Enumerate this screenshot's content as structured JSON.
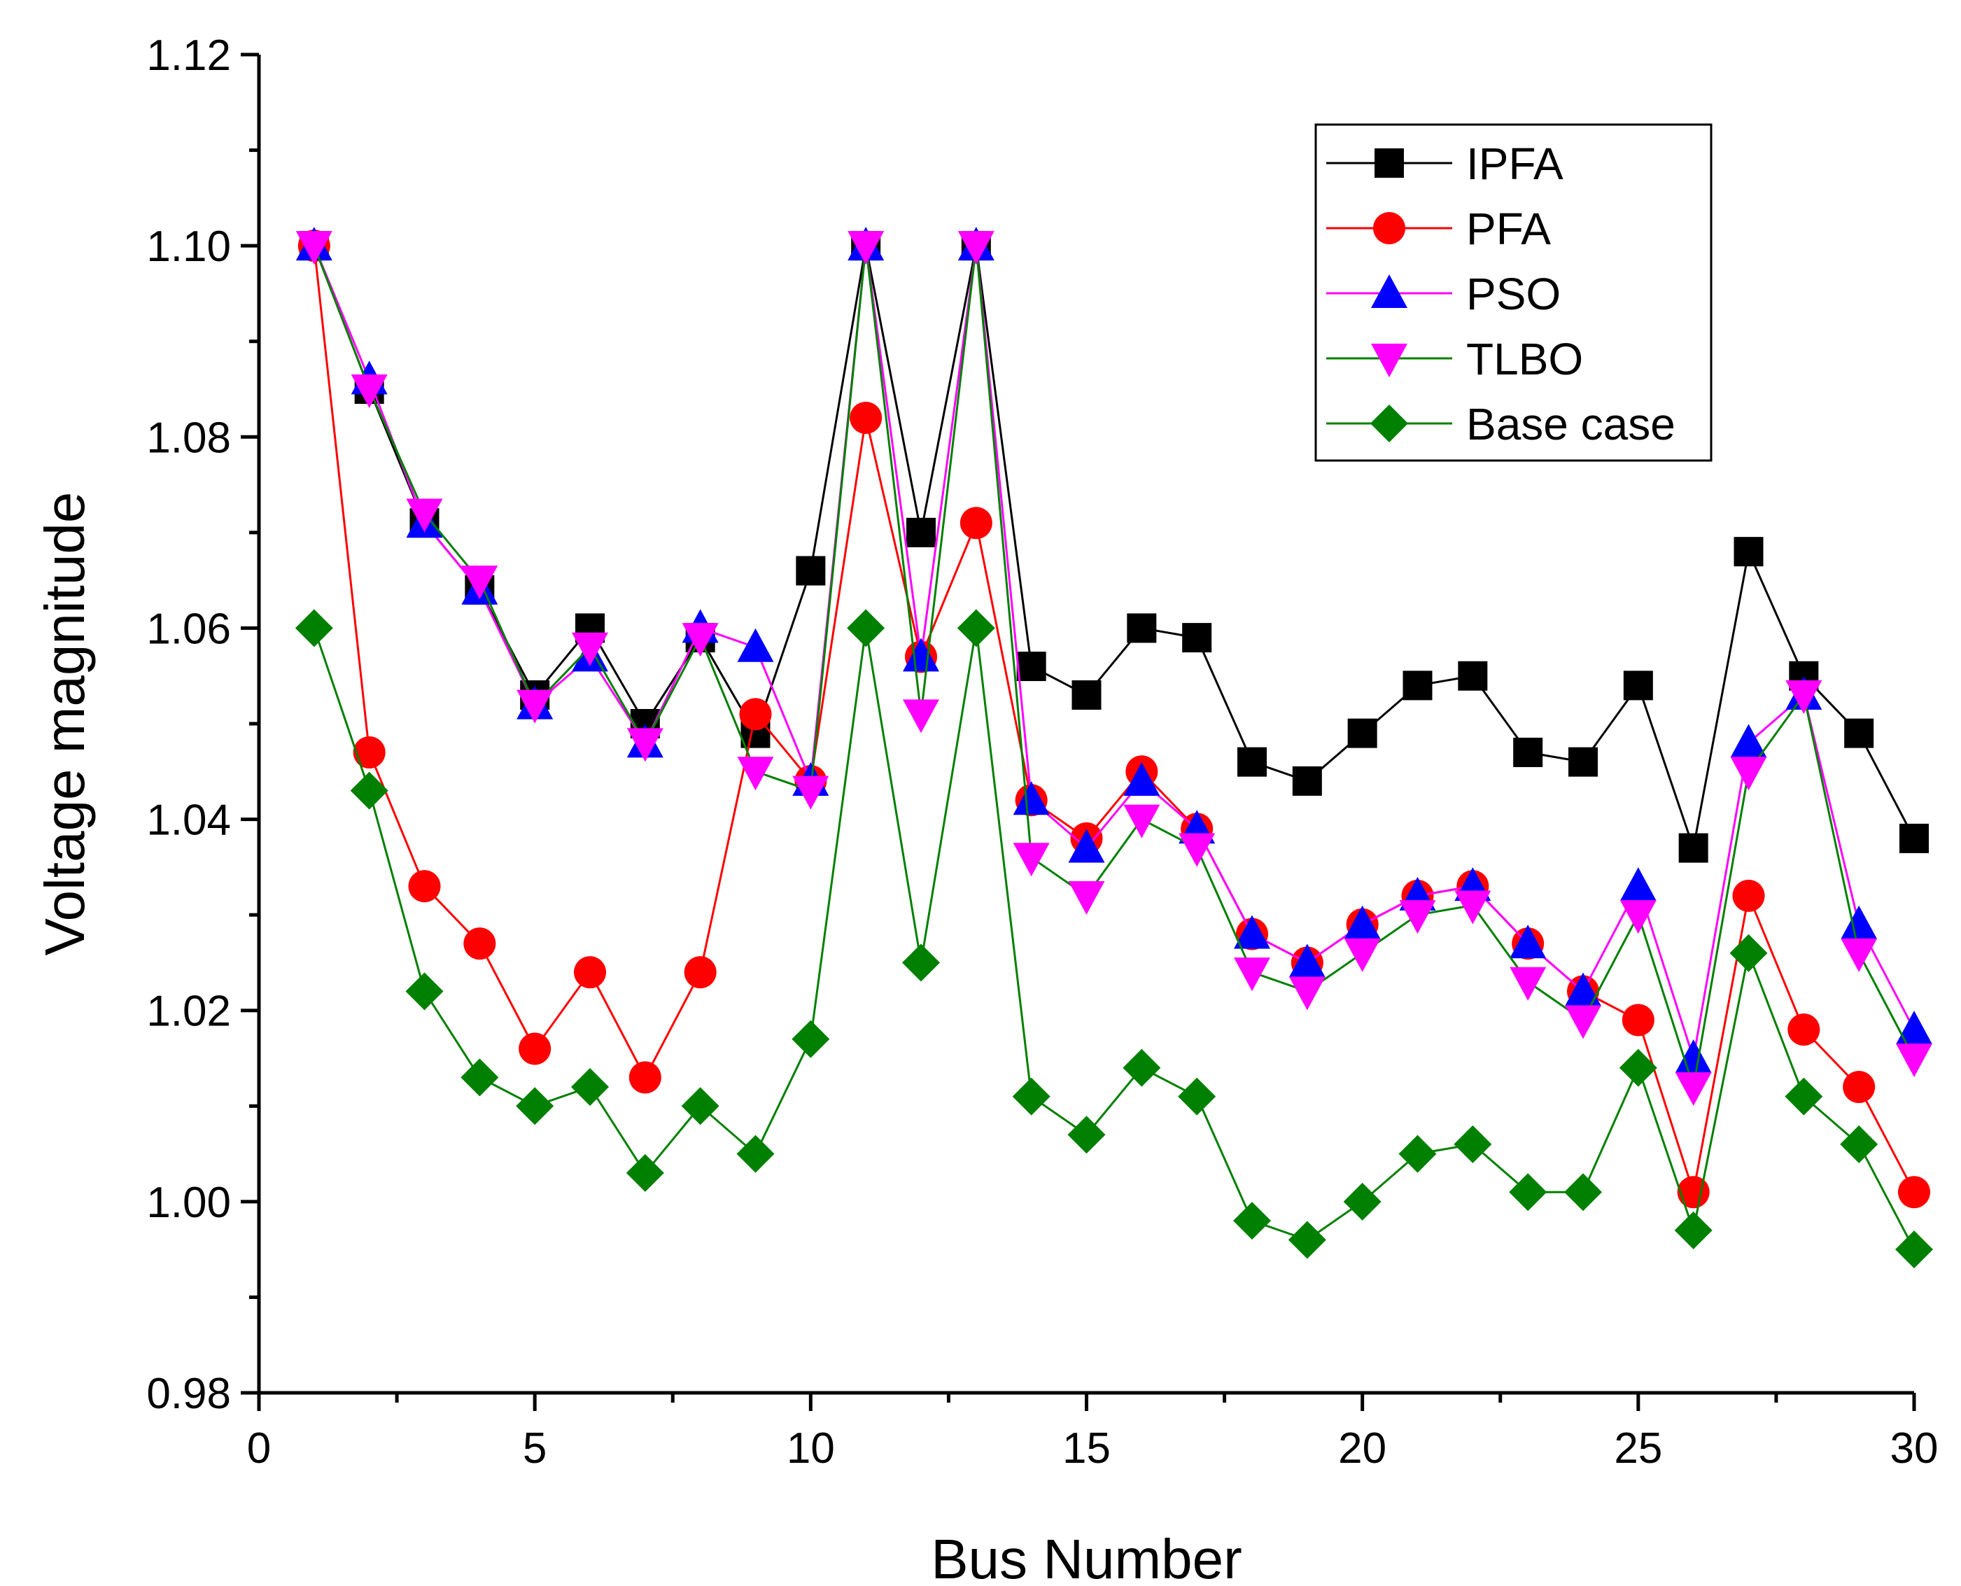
{
  "chart_data": {
    "type": "line",
    "title": "",
    "xlabel": "Bus Number",
    "ylabel": "Voltage magnitude",
    "xlim": [
      0,
      30
    ],
    "ylim": [
      0.98,
      1.12
    ],
    "x_major_ticks": [
      0,
      5,
      10,
      15,
      20,
      25,
      30
    ],
    "x_tick_labels": [
      "0",
      "5",
      "10",
      "15",
      "20",
      "25",
      "30"
    ],
    "y_major_ticks": [
      0.98,
      1.0,
      1.02,
      1.04,
      1.06,
      1.08,
      1.1,
      1.12
    ],
    "y_tick_labels": [
      "0.98",
      "1.00",
      "1.02",
      "1.04",
      "1.06",
      "1.08",
      "1.10",
      "1.12"
    ],
    "grid": false,
    "legend_position": "top-right",
    "x": [
      1,
      2,
      3,
      4,
      5,
      6,
      7,
      8,
      9,
      10,
      11,
      12,
      13,
      14,
      15,
      16,
      17,
      18,
      19,
      20,
      21,
      22,
      23,
      24,
      25,
      26,
      27,
      28,
      29,
      30
    ],
    "series": [
      {
        "name": "IPFA",
        "color": "#000000",
        "marker": "square",
        "values": [
          1.1,
          1.085,
          1.071,
          1.064,
          1.053,
          1.06,
          1.05,
          1.059,
          1.049,
          1.066,
          1.1,
          1.07,
          1.1,
          1.056,
          1.053,
          1.06,
          1.059,
          1.046,
          1.044,
          1.049,
          1.054,
          1.055,
          1.047,
          1.046,
          1.054,
          1.037,
          1.068,
          1.055,
          1.049,
          1.038
        ]
      },
      {
        "name": "PFA",
        "color": "#ff0000",
        "marker": "circle",
        "values": [
          1.1,
          1.047,
          1.033,
          1.027,
          1.016,
          1.024,
          1.013,
          1.024,
          1.051,
          1.044,
          1.082,
          1.057,
          1.071,
          1.042,
          1.038,
          1.045,
          1.039,
          1.028,
          1.025,
          1.029,
          1.032,
          1.033,
          1.027,
          1.022,
          1.019,
          1.001,
          1.032,
          1.018,
          1.012,
          1.001
        ]
      },
      {
        "name": "PSO",
        "color": "#ff00ff",
        "marker_color": "#0000ff",
        "marker": "triangle-up",
        "values": [
          1.1,
          1.086,
          1.071,
          1.064,
          1.052,
          1.057,
          1.048,
          1.06,
          1.058,
          1.044,
          1.1,
          1.057,
          1.1,
          1.042,
          1.037,
          1.044,
          1.039,
          1.028,
          1.025,
          1.029,
          1.032,
          1.033,
          1.027,
          1.022,
          1.033,
          1.015,
          1.048,
          1.053,
          1.029,
          1.018
        ]
      },
      {
        "name": "TLBO",
        "color": "#008000",
        "marker_color": "#ff00ff",
        "marker": "triangle-down",
        "values": [
          1.1,
          1.085,
          1.072,
          1.065,
          1.052,
          1.058,
          1.048,
          1.059,
          1.045,
          1.043,
          1.1,
          1.051,
          1.1,
          1.036,
          1.032,
          1.04,
          1.037,
          1.024,
          1.022,
          1.026,
          1.03,
          1.031,
          1.023,
          1.019,
          1.03,
          1.012,
          1.045,
          1.053,
          1.026,
          1.015
        ]
      },
      {
        "name": "Base case",
        "color": "#008000",
        "marker": "diamond",
        "values": [
          1.06,
          1.043,
          1.022,
          1.013,
          1.01,
          1.012,
          1.003,
          1.01,
          1.005,
          1.017,
          1.06,
          1.025,
          1.06,
          1.011,
          1.007,
          1.014,
          1.011,
          0.998,
          0.996,
          1.0,
          1.005,
          1.006,
          1.001,
          1.001,
          1.014,
          0.997,
          1.026,
          1.011,
          1.006,
          0.995
        ]
      }
    ]
  }
}
